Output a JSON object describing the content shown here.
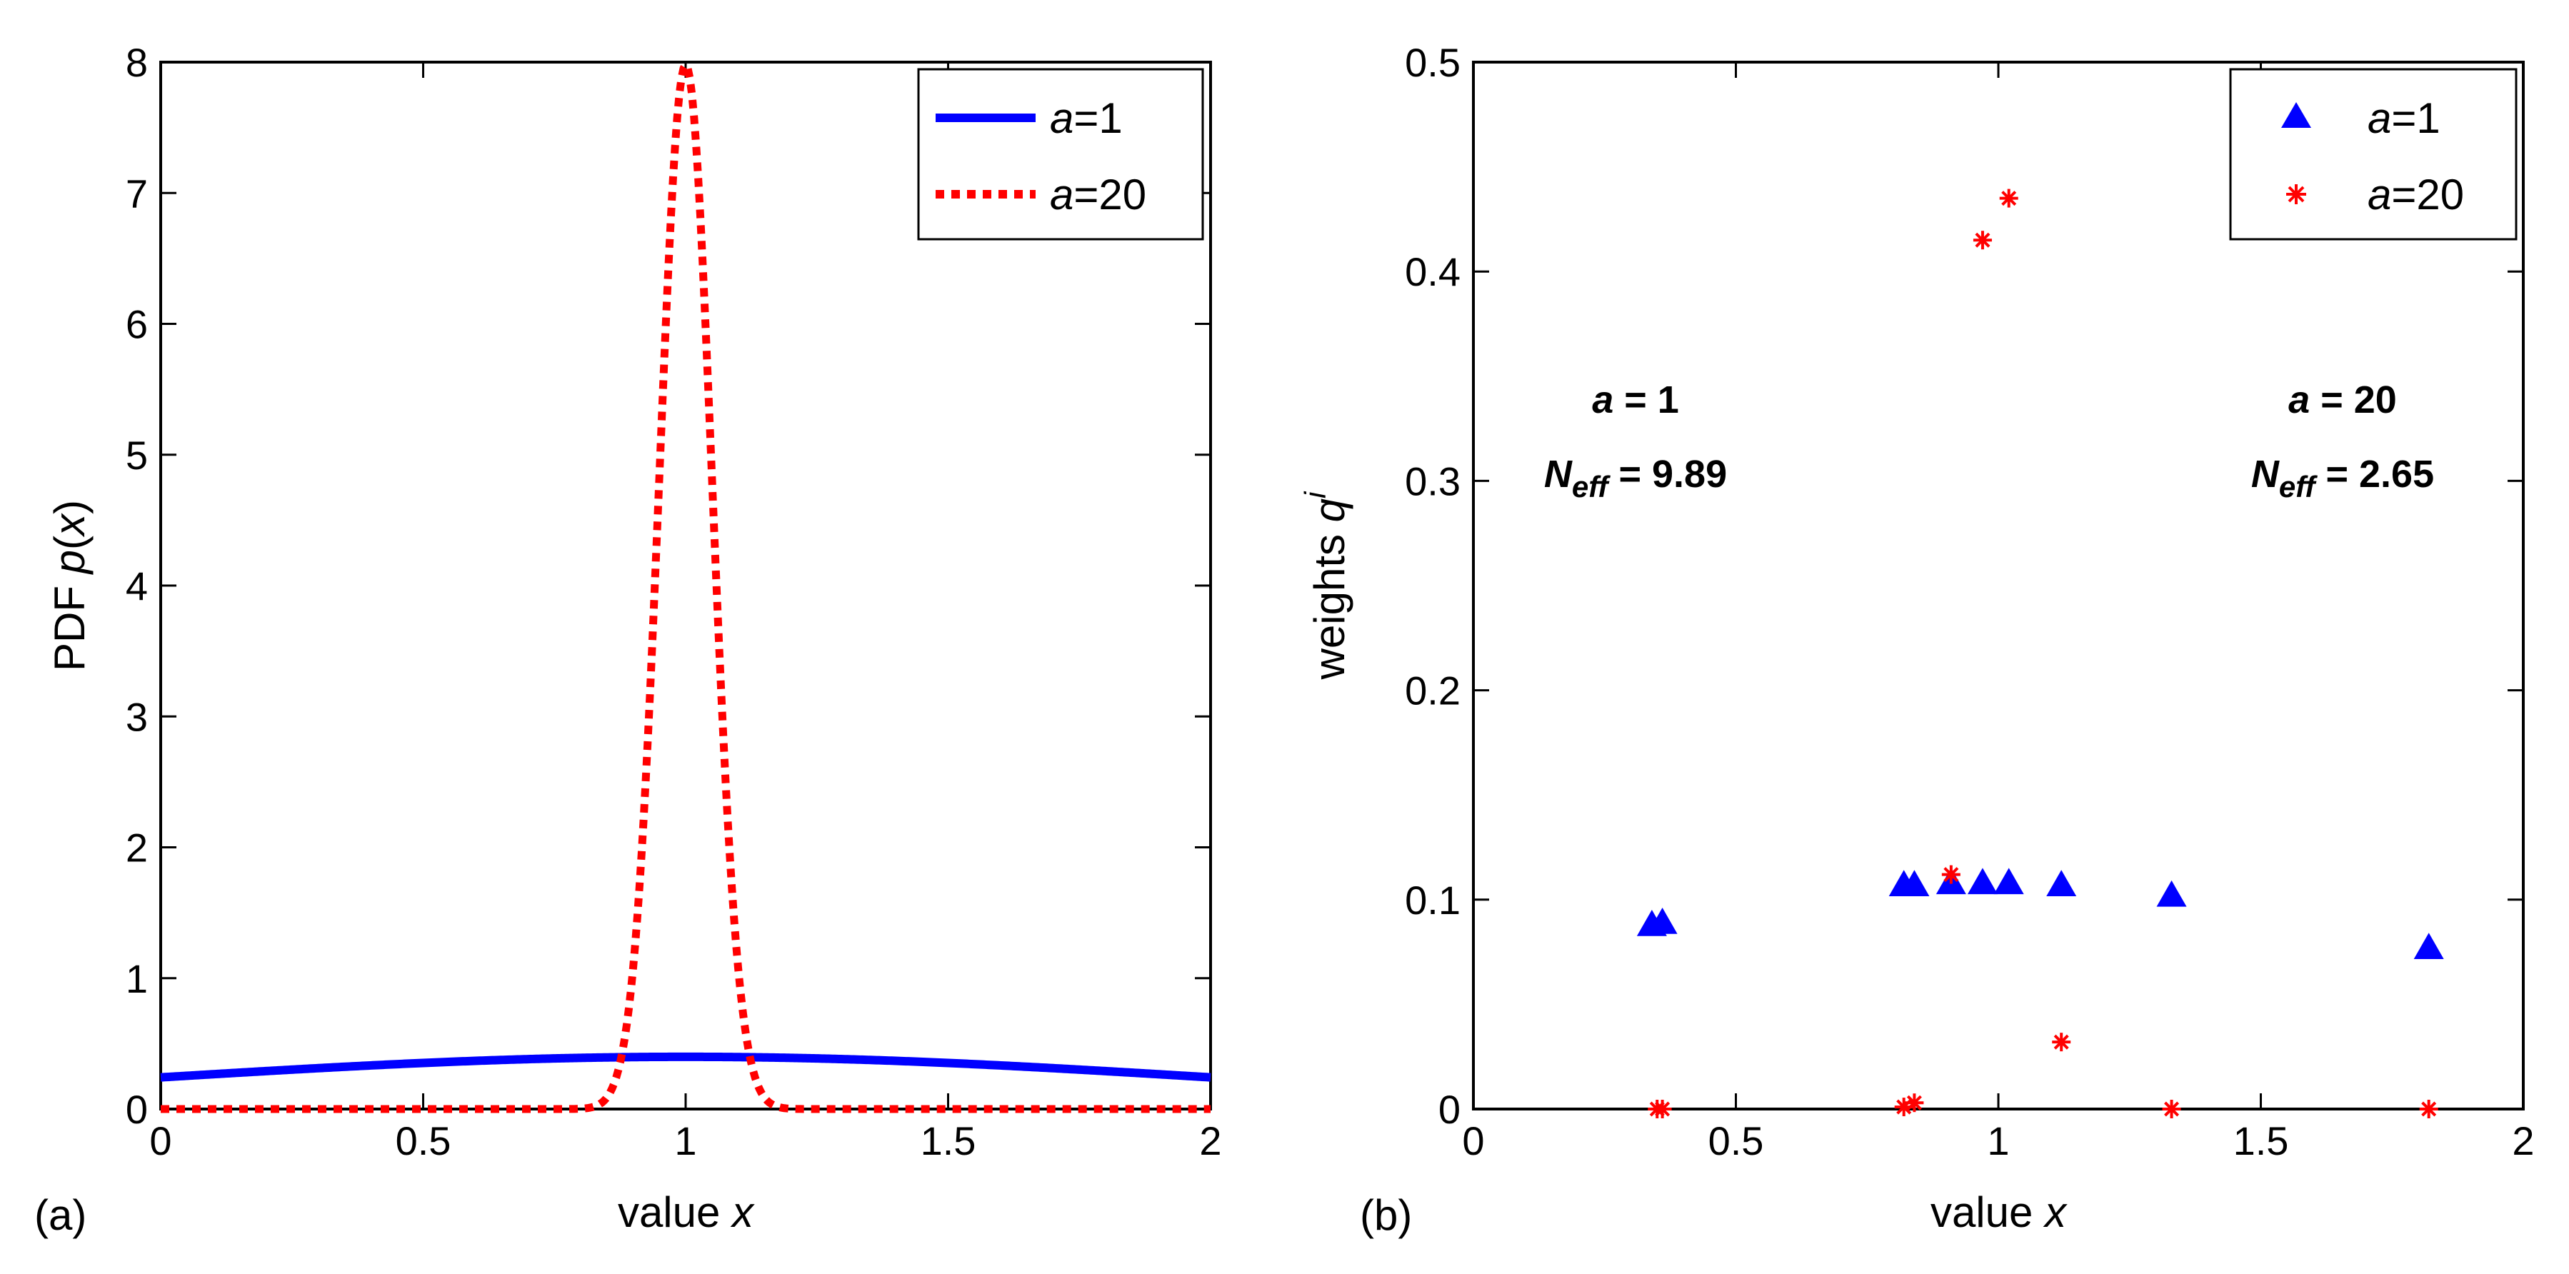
{
  "chart_data": [
    {
      "type": "line",
      "panel_tag": "(a)",
      "xlabel": "value",
      "xlabel_var": "x",
      "ylabel": "PDF",
      "ylabel_func": "p",
      "ylabel_var": "x",
      "xlim": [
        0,
        2
      ],
      "ylim": [
        0,
        8
      ],
      "xticks": [
        0,
        0.5,
        1,
        1.5,
        2
      ],
      "xtick_labels": [
        "0",
        "0.5",
        "1",
        "1.5",
        "2"
      ],
      "yticks": [
        0,
        1,
        2,
        3,
        4,
        5,
        6,
        7,
        8
      ],
      "ytick_labels": [
        "0",
        "1",
        "2",
        "3",
        "4",
        "5",
        "6",
        "7",
        "8"
      ],
      "legend_position": "top-right",
      "series": [
        {
          "name": "a=1",
          "legend_var": "a",
          "legend_val": "=1",
          "color": "#0000ff",
          "style": "solid",
          "distribution": {
            "kind": "normal",
            "mean": 1,
            "sigma": 1
          },
          "x": [
            0,
            0.25,
            0.5,
            0.75,
            1,
            1.25,
            1.5,
            1.75,
            2
          ],
          "y": [
            0.242,
            0.301,
            0.352,
            0.387,
            0.399,
            0.387,
            0.352,
            0.301,
            0.242
          ]
        },
        {
          "name": "a=20",
          "legend_var": "a",
          "legend_val": "=20",
          "color": "#ff0000",
          "style": "dotted",
          "distribution": {
            "kind": "normal",
            "mean": 1,
            "sigma": 0.05
          },
          "x": [
            0.8,
            0.85,
            0.9,
            0.95,
            1,
            1.05,
            1.1,
            1.15,
            1.2
          ],
          "y": [
            0.0027,
            0.089,
            1.08,
            4.84,
            7.98,
            4.84,
            1.08,
            0.089,
            0.0027
          ]
        }
      ]
    },
    {
      "type": "scatter",
      "panel_tag": "(b)",
      "xlabel": "value",
      "xlabel_var": "x",
      "ylabel": "weights",
      "ylabel_var": "q",
      "ylabel_sup": "i",
      "xlim": [
        0,
        2
      ],
      "ylim": [
        0,
        0.5
      ],
      "xticks": [
        0,
        0.5,
        1,
        1.5,
        2
      ],
      "xtick_labels": [
        "0",
        "0.5",
        "1",
        "1.5",
        "2"
      ],
      "yticks": [
        0,
        0.1,
        0.2,
        0.3,
        0.4,
        0.5
      ],
      "ytick_labels": [
        "0",
        "0.1",
        "0.2",
        "0.3",
        "0.4",
        "0.5"
      ],
      "legend_position": "top-right",
      "series": [
        {
          "name": "a=1",
          "legend_var": "a",
          "legend_val": "=1",
          "color": "#0000ff",
          "marker": "triangle",
          "x": [
            0.34,
            0.36,
            0.82,
            0.84,
            0.91,
            0.97,
            1.02,
            1.12,
            1.33,
            1.82
          ],
          "y": [
            0.088,
            0.089,
            0.107,
            0.107,
            0.108,
            0.108,
            0.108,
            0.107,
            0.102,
            0.077
          ]
        },
        {
          "name": "a=20",
          "legend_var": "a",
          "legend_val": "=20",
          "color": "#ff0000",
          "marker": "star",
          "x": [
            0.35,
            0.36,
            0.82,
            0.84,
            0.91,
            0.97,
            1.02,
            1.12,
            1.33,
            1.82
          ],
          "y": [
            0.0,
            0.0,
            0.001,
            0.003,
            0.112,
            0.415,
            0.435,
            0.032,
            0.0,
            0.0
          ]
        }
      ],
      "annotations": [
        {
          "var": "a",
          "rest": " = 1",
          "neff_var": "N",
          "neff_sub": "eff",
          "neff_rest": " = 9.89",
          "x_at": 0.3,
          "y_at": 0.34
        },
        {
          "var": "a",
          "rest": " = 20",
          "neff_var": "N",
          "neff_sub": "eff",
          "neff_rest": " = 2.65",
          "x_at": 1.65,
          "y_at": 0.34
        }
      ]
    }
  ]
}
